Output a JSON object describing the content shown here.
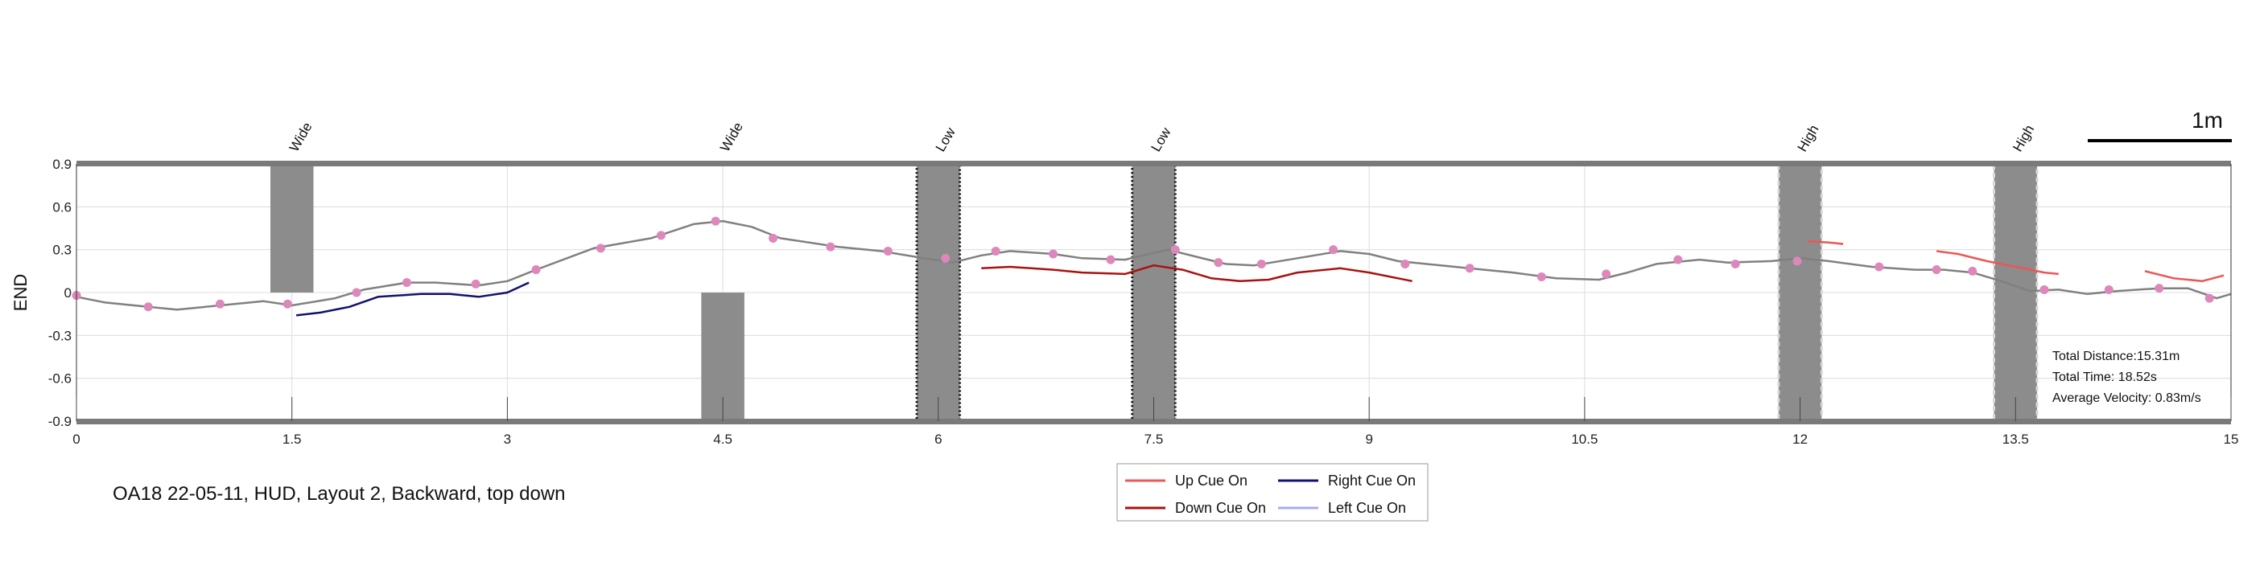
{
  "chart_data": {
    "type": "line",
    "caption": "OA18 22-05-11, HUD, Layout 2, Backward, top down",
    "ylabel": "END",
    "xlim": [
      0,
      15
    ],
    "ylim": [
      -0.9,
      0.9
    ],
    "x_ticks": [
      0,
      1.5,
      3,
      4.5,
      6,
      7.5,
      9,
      10.5,
      12,
      13.5,
      15
    ],
    "x_tick_labels": [
      "0",
      "1.5",
      "3",
      "4.5",
      "6",
      "7.5",
      "9",
      "10.5",
      "12",
      "13.5",
      "15"
    ],
    "y_ticks": [
      0.9,
      0.6,
      0.3,
      0,
      -0.3,
      -0.6,
      -0.9
    ],
    "y_tick_labels": [
      "0.9",
      "0.6",
      "0.3",
      "0",
      "-0.3",
      "-0.6",
      "-0.9"
    ],
    "grid": true,
    "scale_bar_label": "1m",
    "obstacles": [
      {
        "label": "Wide",
        "x0": 1.35,
        "x1": 1.65,
        "y0": 0.0,
        "y1": 0.9,
        "style": "solid"
      },
      {
        "label": "Wide",
        "x0": 4.35,
        "x1": 4.65,
        "y0": -0.9,
        "y1": 0.0,
        "style": "solid"
      },
      {
        "label": "Low",
        "x0": 5.85,
        "x1": 6.15,
        "y0": -0.9,
        "y1": 0.9,
        "style": "dotted-dark"
      },
      {
        "label": "Low",
        "x0": 7.35,
        "x1": 7.65,
        "y0": -0.9,
        "y1": 0.9,
        "style": "dotted-dark"
      },
      {
        "label": "High",
        "x0": 11.85,
        "x1": 12.15,
        "y0": -0.9,
        "y1": 0.9,
        "style": "dashed-light"
      },
      {
        "label": "High",
        "x0": 13.35,
        "x1": 13.65,
        "y0": -0.9,
        "y1": 0.9,
        "style": "dashed-light"
      }
    ],
    "trajectory": {
      "color": "#808080",
      "x": [
        0,
        0.2,
        0.5,
        0.7,
        1.0,
        1.3,
        1.5,
        1.8,
        2.0,
        2.3,
        2.5,
        2.8,
        3.0,
        3.2,
        3.6,
        4.0,
        4.3,
        4.5,
        4.7,
        4.9,
        5.3,
        5.6,
        5.9,
        6.1,
        6.3,
        6.5,
        6.8,
        7.0,
        7.3,
        7.6,
        7.8,
        8.0,
        8.2,
        8.5,
        8.8,
        9.0,
        9.2,
        9.5,
        9.8,
        10.0,
        10.3,
        10.6,
        10.8,
        11.0,
        11.3,
        11.5,
        11.8,
        12.0,
        12.2,
        12.5,
        12.8,
        13.0,
        13.2,
        13.4,
        13.6,
        13.8,
        14.0,
        14.2,
        14.5,
        14.7,
        14.9,
        15.0
      ],
      "y": [
        -0.03,
        -0.07,
        -0.1,
        -0.12,
        -0.09,
        -0.06,
        -0.09,
        -0.04,
        0.02,
        0.07,
        0.07,
        0.05,
        0.08,
        0.16,
        0.31,
        0.38,
        0.48,
        0.5,
        0.46,
        0.38,
        0.32,
        0.29,
        0.24,
        0.21,
        0.26,
        0.29,
        0.27,
        0.24,
        0.23,
        0.3,
        0.25,
        0.2,
        0.19,
        0.24,
        0.29,
        0.27,
        0.22,
        0.19,
        0.16,
        0.14,
        0.1,
        0.09,
        0.14,
        0.2,
        0.23,
        0.21,
        0.22,
        0.24,
        0.22,
        0.18,
        0.16,
        0.16,
        0.14,
        0.08,
        0.01,
        0.02,
        -0.01,
        0.01,
        0.03,
        0.03,
        -0.04,
        -0.01
      ]
    },
    "markers": {
      "color": "#dd88bb",
      "x": [
        0,
        0.5,
        1.0,
        1.47,
        1.95,
        2.3,
        2.78,
        3.2,
        3.65,
        4.07,
        4.45,
        4.85,
        5.25,
        5.65,
        6.05,
        6.4,
        6.8,
        7.2,
        7.65,
        7.95,
        8.25,
        8.75,
        9.25,
        9.7,
        10.2,
        10.65,
        11.15,
        11.55,
        11.98,
        12.55,
        12.95,
        13.2,
        13.7,
        14.15,
        14.5,
        14.85
      ],
      "y": [
        -0.02,
        -0.1,
        -0.08,
        -0.08,
        0.0,
        0.07,
        0.06,
        0.16,
        0.31,
        0.4,
        0.5,
        0.38,
        0.32,
        0.29,
        0.24,
        0.29,
        0.27,
        0.23,
        0.3,
        0.21,
        0.2,
        0.3,
        0.2,
        0.17,
        0.11,
        0.13,
        0.23,
        0.2,
        0.22,
        0.18,
        0.16,
        0.15,
        0.02,
        0.02,
        0.03,
        -0.04
      ]
    },
    "series": [
      {
        "name": "Up Cue On",
        "color": "#ee5555",
        "segments": [
          {
            "x": [
              12.05,
              12.2,
              12.3
            ],
            "y": [
              0.36,
              0.35,
              0.34
            ]
          },
          {
            "x": [
              12.95,
              13.1,
              13.3,
              13.5,
              13.7,
              13.8
            ],
            "y": [
              0.29,
              0.27,
              0.22,
              0.18,
              0.14,
              0.13
            ]
          },
          {
            "x": [
              14.4,
              14.6,
              14.8,
              14.95
            ],
            "y": [
              0.15,
              0.1,
              0.08,
              0.12
            ]
          }
        ]
      },
      {
        "name": "Right Cue On",
        "color": "#11116e",
        "segments": [
          {
            "x": [
              1.53,
              1.7,
              1.9,
              2.1,
              2.4,
              2.6,
              2.8,
              3.0,
              3.15
            ],
            "y": [
              -0.16,
              -0.14,
              -0.1,
              -0.03,
              -0.01,
              -0.01,
              -0.03,
              0.0,
              0.07
            ]
          }
        ]
      },
      {
        "name": "Down Cue On",
        "color": "#aa1111",
        "segments": [
          {
            "x": [
              6.3,
              6.5,
              6.8,
              7.0,
              7.3,
              7.5,
              7.7,
              7.9,
              8.1,
              8.3,
              8.5,
              8.8,
              9.0,
              9.3
            ],
            "y": [
              0.17,
              0.18,
              0.16,
              0.14,
              0.13,
              0.19,
              0.16,
              0.1,
              0.08,
              0.09,
              0.14,
              0.17,
              0.14,
              0.08
            ]
          }
        ]
      },
      {
        "name": "Left Cue On",
        "color": "#aaaaee",
        "segments": []
      }
    ],
    "stats": [
      "Total Distance:15.31m",
      "Total Time: 18.52s",
      "Average Velocity: 0.83m/s"
    ],
    "legend_position": "bottom-center"
  }
}
